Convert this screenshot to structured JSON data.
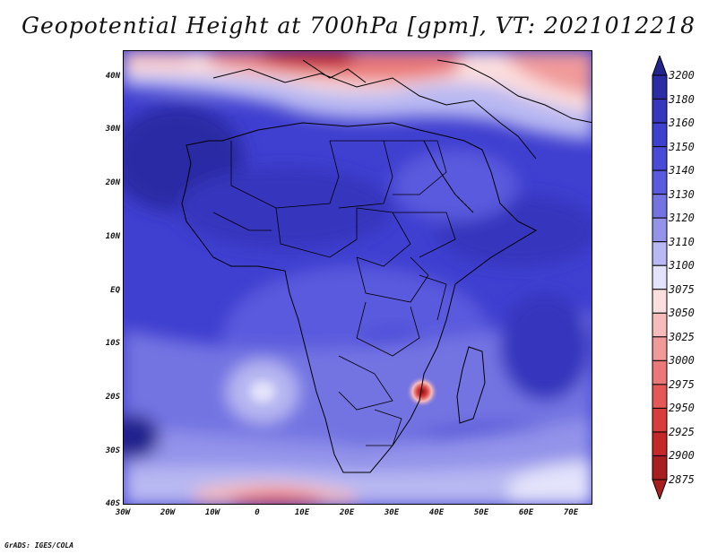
{
  "title": "Geopotential Height at 700hPa [gpm], VT: 2021012218",
  "credit": "GrADS: IGES/COLA",
  "y_axis_labels": [
    "40N",
    "30N",
    "20N",
    "10N",
    "EQ",
    "10S",
    "20S",
    "30S",
    "40S"
  ],
  "x_axis_labels": [
    "30W",
    "20W",
    "10W",
    "0",
    "10E",
    "20E",
    "30E",
    "40E",
    "50E",
    "60E",
    "70E"
  ],
  "colorbar": {
    "levels": [
      {
        "value": "3200",
        "color": "#24248e"
      },
      {
        "value": "3180",
        "color": "#2b2ba5"
      },
      {
        "value": "3160",
        "color": "#3535bd"
      },
      {
        "value": "3150",
        "color": "#3f3fd0"
      },
      {
        "value": "3140",
        "color": "#4a4ad8"
      },
      {
        "value": "3130",
        "color": "#5a5ade"
      },
      {
        "value": "3120",
        "color": "#7373e2"
      },
      {
        "value": "3110",
        "color": "#9393ea"
      },
      {
        "value": "3100",
        "color": "#b8b8f2"
      },
      {
        "value": "3075",
        "color": "#e3e3fb"
      },
      {
        "value": "3050",
        "color": "#fbdede"
      },
      {
        "value": "3025",
        "color": "#f6bcbc"
      },
      {
        "value": "3000",
        "color": "#f09a9a"
      },
      {
        "value": "2975",
        "color": "#ea7878"
      },
      {
        "value": "2950",
        "color": "#e45858"
      },
      {
        "value": "2925",
        "color": "#d83c3c"
      },
      {
        "value": "2900",
        "color": "#c42828"
      },
      {
        "value": "2875",
        "color": "#a91e1e"
      }
    ]
  }
}
